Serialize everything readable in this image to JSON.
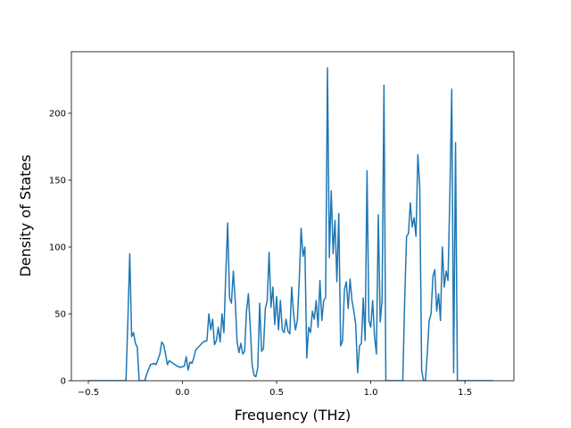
{
  "chart_data": {
    "type": "line",
    "xlabel": "Frequency (THz)",
    "ylabel": "Density of States",
    "xlim": [
      -0.59,
      1.76
    ],
    "ylim": [
      0,
      246
    ],
    "xticks": [
      {
        "value": -0.5,
        "label": "−0.5"
      },
      {
        "value": 0,
        "label": "0.0"
      },
      0.5,
      {
        "value": 1,
        "label": "1.0"
      },
      1.5
    ],
    "yticks": [
      0,
      50,
      100,
      150,
      200
    ],
    "series": [
      {
        "color": "#1f77b4",
        "x": [
          -0.5,
          -0.3,
          -0.29,
          -0.28,
          -0.27,
          -0.26,
          -0.25,
          -0.24,
          -0.23,
          -0.2,
          -0.19,
          -0.17,
          -0.15,
          -0.14,
          -0.12,
          -0.11,
          -0.1,
          -0.09,
          -0.08,
          -0.07,
          -0.05,
          -0.03,
          -0.01,
          0.01,
          0.02,
          0.03,
          0.04,
          0.05,
          0.06,
          0.07,
          0.09,
          0.11,
          0.13,
          0.14,
          0.15,
          0.16,
          0.17,
          0.18,
          0.19,
          0.2,
          0.21,
          0.22,
          0.23,
          0.24,
          0.25,
          0.26,
          0.27,
          0.28,
          0.29,
          0.3,
          0.31,
          0.32,
          0.33,
          0.34,
          0.35,
          0.36,
          0.37,
          0.38,
          0.39,
          0.4,
          0.41,
          0.42,
          0.43,
          0.44,
          0.45,
          0.46,
          0.47,
          0.48,
          0.49,
          0.5,
          0.51,
          0.52,
          0.53,
          0.54,
          0.55,
          0.56,
          0.57,
          0.58,
          0.59,
          0.6,
          0.61,
          0.62,
          0.63,
          0.64,
          0.65,
          0.66,
          0.67,
          0.68,
          0.69,
          0.7,
          0.71,
          0.72,
          0.73,
          0.74,
          0.75,
          0.76,
          0.77,
          0.78,
          0.79,
          0.8,
          0.81,
          0.82,
          0.83,
          0.84,
          0.85,
          0.86,
          0.87,
          0.88,
          0.89,
          0.9,
          0.91,
          0.92,
          0.93,
          0.94,
          0.95,
          0.96,
          0.97,
          0.98,
          0.99,
          1.0,
          1.01,
          1.02,
          1.03,
          1.04,
          1.05,
          1.06,
          1.07,
          1.08,
          1.17,
          1.18,
          1.19,
          1.2,
          1.21,
          1.22,
          1.23,
          1.24,
          1.25,
          1.26,
          1.27,
          1.28,
          1.29,
          1.3,
          1.31,
          1.32,
          1.33,
          1.34,
          1.35,
          1.36,
          1.37,
          1.38,
          1.39,
          1.4,
          1.41,
          1.42,
          1.43,
          1.44,
          1.45,
          1.46,
          1.65
        ],
        "values": [
          0,
          0,
          45,
          95,
          33,
          36,
          28,
          25,
          0,
          0,
          5,
          12,
          13,
          12,
          20,
          29,
          27,
          20,
          12,
          15,
          13,
          11,
          10,
          11,
          18,
          8,
          14,
          13,
          17,
          23,
          26,
          29,
          30,
          50,
          38,
          46,
          27,
          30,
          40,
          29,
          50,
          36,
          80,
          118,
          62,
          58,
          82,
          60,
          29,
          21,
          28,
          20,
          22,
          52,
          65,
          40,
          12,
          4,
          3,
          10,
          58,
          22,
          24,
          54,
          60,
          96,
          55,
          70,
          42,
          63,
          38,
          60,
          38,
          36,
          46,
          37,
          35,
          70,
          50,
          38,
          45,
          75,
          114,
          93,
          100,
          17,
          40,
          36,
          52,
          46,
          60,
          40,
          75,
          45,
          60,
          62,
          234,
          92,
          142,
          95,
          120,
          74,
          125,
          26,
          30,
          68,
          74,
          54,
          76,
          60,
          52,
          42,
          6,
          26,
          28,
          62,
          30,
          157,
          45,
          40,
          60,
          33,
          20,
          124,
          44,
          60,
          221,
          0,
          0,
          60,
          108,
          110,
          133,
          115,
          122,
          108,
          169,
          145,
          8,
          0,
          0,
          20,
          45,
          50,
          78,
          83,
          52,
          65,
          45,
          100,
          70,
          82,
          75,
          140,
          218,
          6,
          178,
          0,
          0
        ]
      }
    ]
  }
}
